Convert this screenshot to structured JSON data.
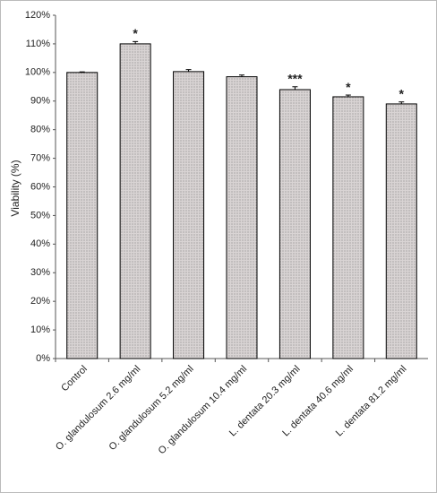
{
  "chart_data": {
    "type": "bar",
    "y_label": "Viability (%)",
    "categories": [
      "Control",
      "O. glandulosum 2.6 mg/ml",
      "O. glandulosum 5.2 mg/ml",
      "O. glandulosum 10.4 mg/ml",
      "L. dentata 20.3 mg/ml",
      "L. dentata 40.6 mg/ml",
      "L. dentata 81.2 mg/ml"
    ],
    "values": [
      100,
      110,
      100.3,
      98.5,
      94,
      91.5,
      89
    ],
    "errors": [
      0.2,
      0.8,
      0.7,
      0.6,
      1.0,
      0.6,
      0.7
    ],
    "significance": [
      null,
      "*",
      null,
      null,
      "***",
      "*",
      "*"
    ],
    "color": "#d9d4d4",
    "ylim": [
      0,
      120
    ],
    "yticks": [
      {
        "value": 0,
        "label": "0%"
      },
      {
        "value": 10,
        "label": "10%"
      },
      {
        "value": 20,
        "label": "20%"
      },
      {
        "value": 30,
        "label": "30%"
      },
      {
        "value": 40,
        "label": "40%"
      },
      {
        "value": 50,
        "label": "50%"
      },
      {
        "value": 60,
        "label": "60%"
      },
      {
        "value": 70,
        "label": "70%"
      },
      {
        "value": 80,
        "label": "80%"
      },
      {
        "value": 90,
        "label": "90%"
      },
      {
        "value": 100,
        "label": "100%"
      },
      {
        "value": 110,
        "label": "110%"
      },
      {
        "value": 120,
        "label": "120%"
      }
    ],
    "grid": false
  }
}
